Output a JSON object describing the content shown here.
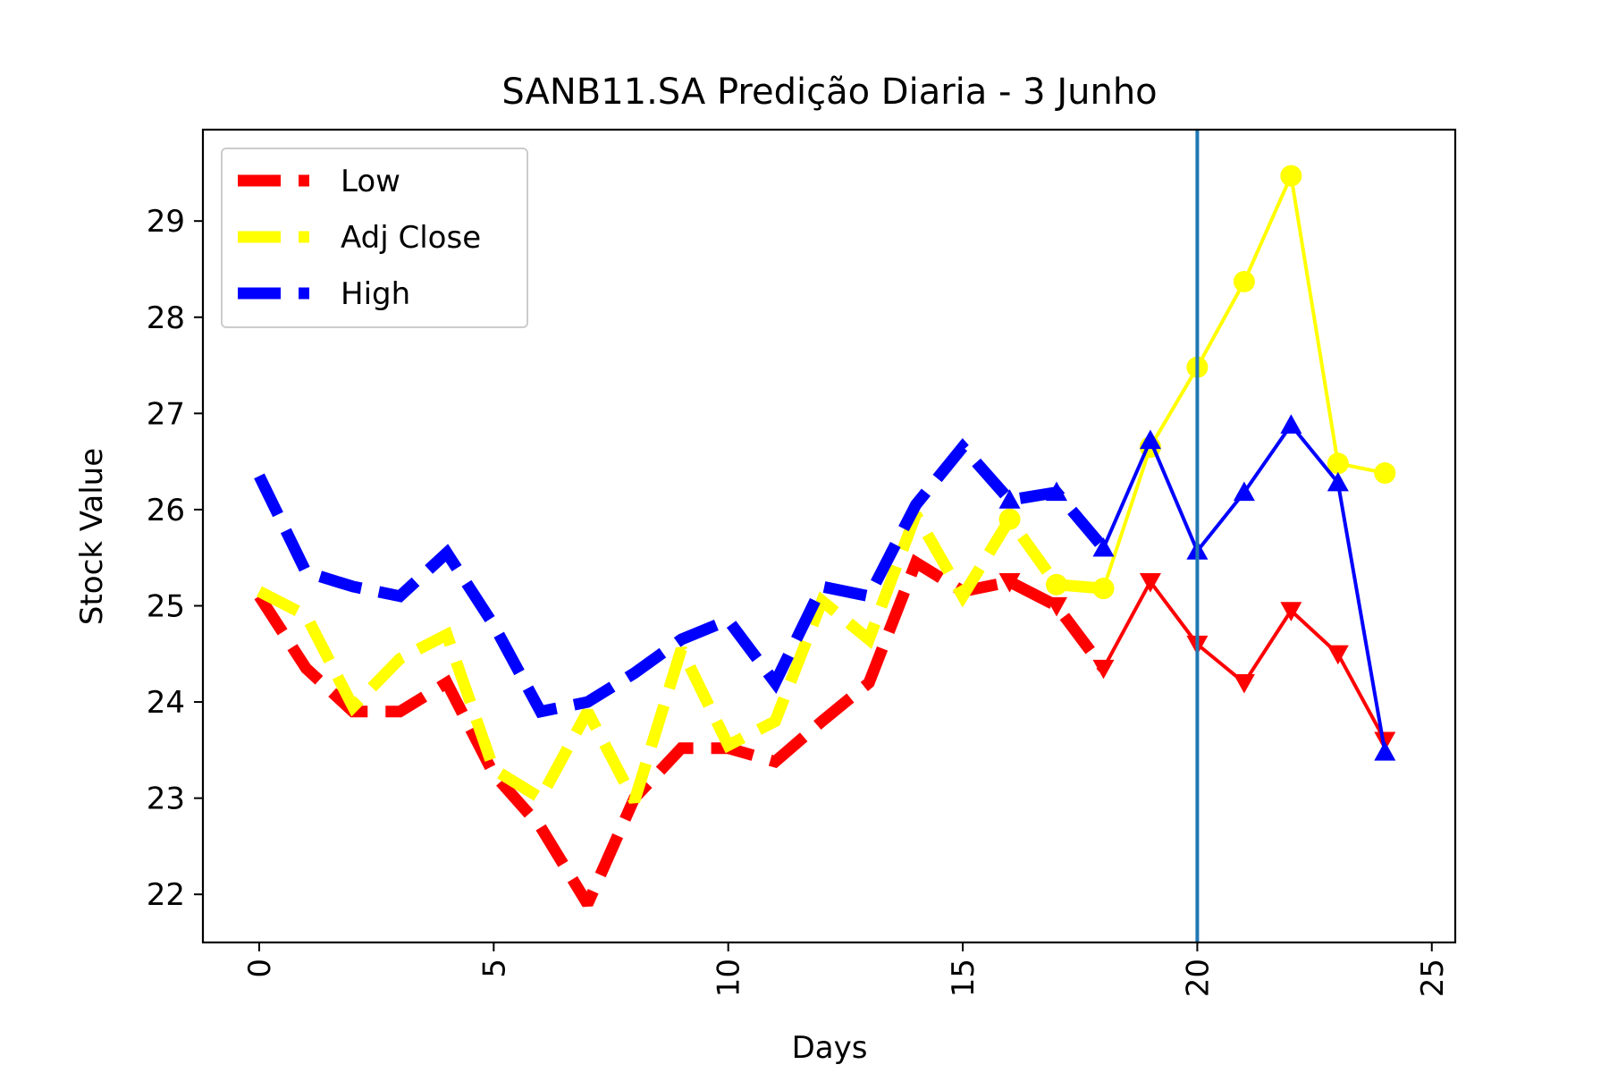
{
  "chart_data": {
    "type": "line",
    "title": "SANB11.SA Predição Diaria - 3 Junho",
    "xlabel": "Days",
    "ylabel": "Stock Value",
    "xlim": [
      -1.2,
      25.5
    ],
    "ylim": [
      21.5,
      29.95
    ],
    "xticks": [
      0,
      5,
      10,
      15,
      20,
      25
    ],
    "yticks": [
      22,
      23,
      24,
      25,
      26,
      27,
      28,
      29
    ],
    "xtick_rotation": "vertical",
    "grid": false,
    "legend": {
      "location": "upper-left"
    },
    "vertical_line": {
      "x": 20,
      "color": "#1f77b4"
    },
    "series": [
      {
        "name": "Low",
        "color": "#ff0000",
        "marker": "triangle-down",
        "historical": {
          "x": [
            0,
            1,
            2,
            3,
            4,
            5,
            6,
            7,
            8,
            9,
            10,
            11,
            12,
            13,
            14,
            15,
            16,
            17,
            18
          ],
          "y": [
            25.1,
            24.35,
            23.9,
            23.9,
            24.2,
            23.25,
            22.7,
            21.9,
            23.0,
            23.52,
            23.52,
            23.38,
            23.8,
            24.2,
            25.45,
            25.15,
            25.25,
            25.0,
            24.35
          ]
        },
        "forecast": {
          "x": [
            18,
            19,
            20,
            21,
            22,
            23,
            24
          ],
          "y": [
            24.35,
            25.25,
            24.6,
            24.2,
            24.95,
            24.5,
            23.6
          ]
        }
      },
      {
        "name": "Adj Close",
        "color": "#ffff00",
        "marker": "circle",
        "historical": {
          "x": [
            0,
            1,
            2,
            3,
            4,
            5,
            6,
            7,
            8,
            9,
            10,
            11,
            12,
            13,
            14,
            15,
            16,
            17,
            18
          ],
          "y": [
            25.15,
            24.9,
            23.95,
            24.45,
            24.7,
            23.3,
            23.0,
            23.9,
            22.97,
            24.55,
            23.55,
            23.8,
            25.05,
            24.65,
            25.95,
            25.1,
            25.9,
            25.22,
            25.18
          ]
        },
        "forecast": {
          "x": [
            18,
            19,
            20,
            21,
            22,
            23,
            24
          ],
          "y": [
            25.18,
            26.65,
            27.48,
            28.37,
            29.47,
            26.48,
            26.38
          ]
        }
      },
      {
        "name": "High",
        "color": "#0000ff",
        "marker": "triangle-up",
        "historical": {
          "x": [
            0,
            1,
            2,
            3,
            4,
            5,
            6,
            7,
            8,
            9,
            10,
            11,
            12,
            13,
            14,
            15,
            16,
            17,
            18
          ],
          "y": [
            26.35,
            25.35,
            25.2,
            25.1,
            25.55,
            24.8,
            23.9,
            24.0,
            24.3,
            24.65,
            24.85,
            24.2,
            25.2,
            25.1,
            26.05,
            26.65,
            26.1,
            26.18,
            25.6
          ]
        },
        "forecast": {
          "x": [
            18,
            19,
            20,
            21,
            22,
            23,
            24
          ],
          "y": [
            25.6,
            26.72,
            25.57,
            26.18,
            26.88,
            26.28,
            23.48
          ]
        }
      }
    ]
  }
}
